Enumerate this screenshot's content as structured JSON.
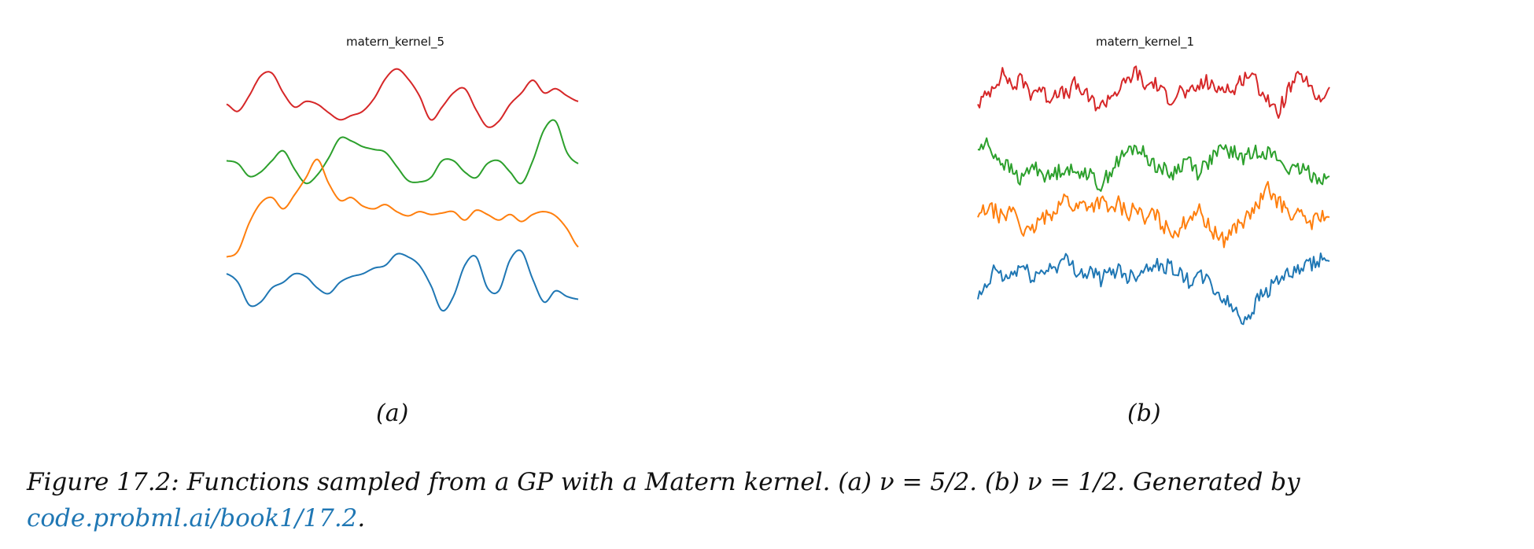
{
  "figure": {
    "caption_text": "Figure 17.2: Functions sampled from a GP with a Matern kernel. (a) ν = 5/2. (b) ν = 1/2. Generated by",
    "caption_link": "code.probml.ai/book1/17.2",
    "caption_end": "."
  },
  "colors": {
    "red": "#d62728",
    "green": "#2ca02c",
    "orange": "#ff7f0e",
    "blue": "#1f77b4"
  },
  "chart_data": [
    {
      "type": "line",
      "title": "matern_kernel_5",
      "panel_label": "(a)",
      "axes_visible": false,
      "grid": false,
      "smoothness": 5,
      "series": [
        {
          "color": "#d62728",
          "offset": 6.0,
          "values": [
            0.0,
            -0.25,
            0.3,
            1.0,
            1.1,
            0.4,
            -0.1,
            0.1,
            0.0,
            -0.3,
            -0.55,
            -0.4,
            -0.25,
            0.2,
            0.9,
            1.25,
            0.9,
            0.3,
            -0.55,
            -0.1,
            0.4,
            0.55,
            -0.2,
            -0.8,
            -0.6,
            0.0,
            0.4,
            0.85,
            0.4,
            0.55,
            0.3,
            0.1
          ]
        },
        {
          "color": "#2ca02c",
          "offset": 4.0,
          "values": [
            0.0,
            -0.1,
            -0.55,
            -0.4,
            0.0,
            0.35,
            -0.3,
            -0.8,
            -0.5,
            0.1,
            0.8,
            0.7,
            0.5,
            0.4,
            0.3,
            -0.2,
            -0.7,
            -0.75,
            -0.6,
            0.0,
            0.0,
            -0.4,
            -0.6,
            -0.1,
            0.0,
            -0.4,
            -0.8,
            0.0,
            1.1,
            1.4,
            0.3,
            -0.1
          ]
        },
        {
          "color": "#ff7f0e",
          "offset": 2.0,
          "values": [
            -1.4,
            -1.2,
            -0.2,
            0.5,
            0.7,
            0.3,
            0.8,
            1.4,
            2.05,
            1.2,
            0.6,
            0.7,
            0.4,
            0.3,
            0.45,
            0.2,
            0.05,
            0.2,
            0.1,
            0.15,
            0.2,
            -0.1,
            0.25,
            0.1,
            -0.1,
            0.1,
            -0.15,
            0.1,
            0.2,
            0.05,
            -0.4,
            -1.05
          ]
        },
        {
          "color": "#1f77b4",
          "offset": 0.0,
          "values": [
            0.0,
            -0.3,
            -1.1,
            -1.0,
            -0.5,
            -0.3,
            0.0,
            -0.1,
            -0.5,
            -0.7,
            -0.3,
            -0.1,
            0.0,
            0.2,
            0.3,
            0.7,
            0.6,
            0.3,
            -0.4,
            -1.3,
            -0.8,
            0.3,
            0.6,
            -0.5,
            -0.6,
            0.5,
            0.8,
            -0.2,
            -1.0,
            -0.6,
            -0.8,
            -0.9
          ]
        }
      ]
    },
    {
      "type": "line",
      "title": "matern_kernel_1",
      "panel_label": "(b)",
      "axes_visible": false,
      "grid": false,
      "smoothness": 1,
      "series": [
        {
          "color": "#d62728",
          "offset": 6.0,
          "values": [
            0.0,
            0.3,
            0.8,
            1.1,
            0.6,
            0.9,
            0.4,
            0.6,
            0.2,
            0.5,
            0.3,
            0.7,
            0.4,
            0.1,
            -0.1,
            0.3,
            0.5,
            0.8,
            1.2,
            0.6,
            0.8,
            0.4,
            0.2,
            0.5,
            0.3,
            0.6,
            0.8,
            0.5,
            0.7,
            0.4,
            0.9,
            1.1,
            0.6,
            0.2,
            -0.4,
            0.3,
            0.8,
            1.0,
            0.4,
            0.2,
            0.6
          ]
        },
        {
          "color": "#2ca02c",
          "offset": 4.0,
          "values": [
            0.4,
            0.6,
            0.2,
            -0.1,
            -0.4,
            -0.7,
            -0.2,
            -0.3,
            -0.6,
            -0.4,
            -0.2,
            -0.5,
            -0.3,
            -0.6,
            -0.9,
            -0.4,
            0.0,
            0.3,
            0.5,
            0.2,
            -0.1,
            -0.3,
            -0.5,
            -0.2,
            0.1,
            -0.4,
            -0.1,
            0.2,
            0.4,
            0.3,
            0.1,
            0.2,
            0.4,
            0.3,
            0.1,
            -0.2,
            -0.4,
            -0.3,
            -0.5,
            -0.6,
            -0.55
          ]
        },
        {
          "color": "#ff7f0e",
          "offset": 2.0,
          "values": [
            0.0,
            0.3,
            0.2,
            -0.1,
            0.4,
            -0.4,
            -0.6,
            -0.1,
            0.0,
            0.4,
            0.7,
            0.3,
            0.5,
            0.4,
            0.6,
            0.2,
            0.5,
            0.1,
            0.4,
            -0.2,
            0.2,
            -0.3,
            -0.5,
            -0.4,
            0.0,
            0.3,
            -0.2,
            -0.6,
            -0.8,
            -0.4,
            -0.2,
            0.1,
            0.5,
            1.0,
            0.6,
            0.3,
            0.1,
            0.0,
            -0.2,
            0.1,
            0.0
          ]
        },
        {
          "color": "#1f77b4",
          "offset": 0.0,
          "values": [
            -0.9,
            -0.5,
            0.2,
            -0.2,
            0.0,
            0.3,
            -0.1,
            0.0,
            0.2,
            0.3,
            0.5,
            0.2,
            0.0,
            0.1,
            -0.2,
            0.0,
            0.2,
            -0.1,
            0.0,
            0.2,
            0.4,
            0.2,
            0.3,
            0.0,
            -0.3,
            -0.1,
            -0.2,
            -0.6,
            -0.9,
            -1.2,
            -1.6,
            -1.4,
            -0.8,
            -0.6,
            -0.2,
            -0.1,
            0.0,
            0.2,
            0.3,
            0.5,
            0.45
          ]
        }
      ]
    }
  ]
}
